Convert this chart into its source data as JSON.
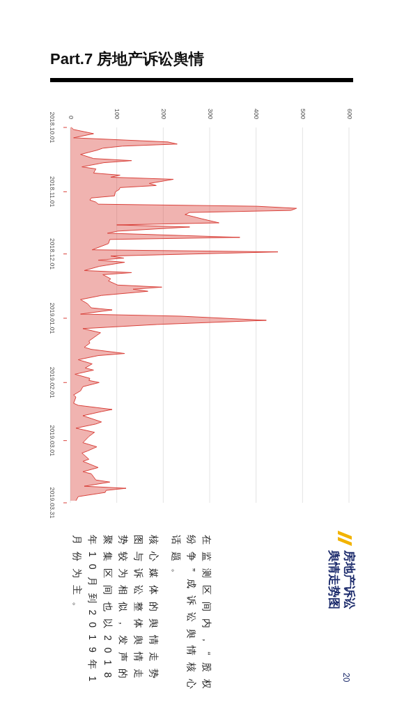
{
  "chart_data": {
    "type": "area",
    "title": "Part.7 房地产诉讼舆情",
    "subtitle": "房地产诉讼舆情走势图",
    "annotations": [
      "在监测区间内，“股权纷争”成诉讼舆情核心话题。",
      "核心媒体的舆情走势图与诉讼整体舆情走势较为相似，发声的聚集区间也以2018年10月到2019年1月份为主。",
      "20"
    ],
    "x": [
      "2018-10-01",
      "2018-10-02",
      "2018-10-04",
      "2018-10-06",
      "2018-10-08",
      "2018-10-09",
      "2018-10-10",
      "2018-10-11",
      "2018-10-12",
      "2018-10-14",
      "2018-10-16",
      "2018-10-17",
      "2018-10-18",
      "2018-10-20",
      "2018-10-21",
      "2018-10-23",
      "2018-10-24",
      "2018-10-25",
      "2018-10-26",
      "2018-10-28",
      "2018-10-29",
      "2018-10-30",
      "2018-10-31",
      "2018-11-01",
      "2018-11-03",
      "2018-11-04",
      "2018-11-05",
      "2018-11-06",
      "2018-11-07",
      "2018-11-08",
      "2018-11-09",
      "2018-11-10",
      "2018-11-11",
      "2018-11-12",
      "2018-11-14",
      "2018-11-16",
      "2018-11-17",
      "2018-11-18",
      "2018-11-20",
      "2018-11-21",
      "2018-11-23",
      "2018-11-24",
      "2018-11-26",
      "2018-11-29",
      "2018-11-30",
      "2018-12-02",
      "2018-12-03",
      "2018-12-04",
      "2018-12-05",
      "2018-12-07",
      "2018-12-09",
      "2018-12-10",
      "2018-12-11",
      "2018-12-13",
      "2018-12-14",
      "2018-12-16",
      "2018-12-17",
      "2018-12-18",
      "2018-12-19",
      "2018-12-21",
      "2018-12-23",
      "2018-12-25",
      "2018-12-27",
      "2018-12-28",
      "2018-12-30",
      "2018-12-31",
      "2019-01-02",
      "2019-01-04",
      "2019-01-06",
      "2019-01-08",
      "2019-01-12",
      "2019-01-13",
      "2019-01-15",
      "2019-01-16",
      "2019-01-18",
      "2019-01-19",
      "2019-01-21",
      "2019-01-23",
      "2019-01-25",
      "2019-01-26",
      "2019-01-28",
      "2019-01-30",
      "2019-01-31",
      "2019-02-01",
      "2019-02-03",
      "2019-02-05",
      "2019-02-07",
      "2019-02-08",
      "2019-02-11",
      "2019-02-12",
      "2019-02-14",
      "2019-02-15",
      "2019-02-17",
      "2019-02-20",
      "2019-02-21",
      "2019-02-23",
      "2019-02-25",
      "2019-02-27",
      "2019-03-02",
      "2019-03-04",
      "2019-03-06",
      "2019-03-07",
      "2019-03-10",
      "2019-03-11",
      "2019-03-14",
      "2019-03-16",
      "2019-03-17",
      "2019-03-20",
      "2019-03-21",
      "2019-03-23",
      "2019-03-24",
      "2019-03-25",
      "2019-03-26",
      "2019-03-28",
      "2019-03-30"
    ],
    "values": [
      2,
      7,
      50,
      7,
      210,
      230,
      112,
      70,
      57,
      22,
      50,
      132,
      72,
      25,
      55,
      50,
      107,
      87,
      222,
      170,
      185,
      107,
      105,
      97,
      95,
      45,
      42,
      55,
      60,
      402,
      487,
      475,
      257,
      247,
      282,
      320,
      100,
      257,
      102,
      80,
      365,
      85,
      82,
      47,
      447,
      87,
      115,
      60,
      117,
      62,
      30,
      132,
      70,
      87,
      82,
      102,
      197,
      135,
      167,
      67,
      22,
      37,
      45,
      90,
      22,
      237,
      422,
      187,
      27,
      65,
      40,
      42,
      30,
      45,
      117,
      60,
      17,
      47,
      32,
      50,
      10,
      42,
      40,
      62,
      27,
      22,
      7,
      12,
      7,
      17,
      90,
      67,
      27,
      67,
      55,
      12,
      52,
      40,
      27,
      57,
      37,
      25,
      40,
      27,
      60,
      27,
      45,
      55,
      85,
      30,
      120,
      77,
      75,
      17,
      12
    ],
    "color": "#d9413a",
    "orientation": "horizontal",
    "ylim": [
      "2019-03-31",
      "2018-10-01"
    ],
    "yticks": [
      {
        "value": "2018-10-01",
        "label": "2018.10.01"
      },
      {
        "value": "2018-11-01",
        "label": "2018.11.01"
      },
      {
        "value": "2018-12-01",
        "label": "2018.12.01"
      },
      {
        "value": "2019-01-01",
        "label": "2019.01.01"
      },
      {
        "value": "2019-02-01",
        "label": "2019.02.01"
      },
      {
        "value": "2019-03-01",
        "label": "2019.03.01"
      },
      {
        "value": "2019-03-31",
        "label": "2019.03.31"
      }
    ],
    "xlim": [
      0,
      600
    ],
    "xticks": [
      0,
      100,
      200,
      300,
      400,
      500,
      600
    ],
    "grid": "x"
  }
}
